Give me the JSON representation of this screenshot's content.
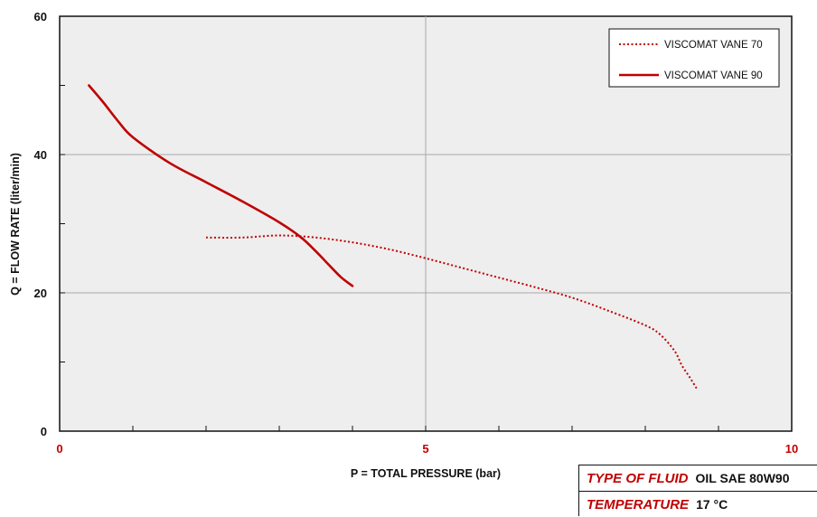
{
  "chart_data": {
    "type": "line",
    "xlabel": "P = TOTAL PRESSURE (bar)",
    "ylabel": "Q = FLOW RATE (liter/min)",
    "xlim": [
      0,
      10
    ],
    "ylim": [
      0,
      60
    ],
    "x_ticks": [
      0,
      5,
      10
    ],
    "y_ticks": [
      0,
      20,
      40,
      60
    ],
    "grid": true,
    "legend_position": "top-right",
    "series": [
      {
        "name": "VISCOMAT VANE 70",
        "style": "dotted",
        "color": "#c00000",
        "x": [
          2.0,
          2.5,
          3.0,
          3.5,
          4.0,
          4.5,
          5.0,
          5.5,
          6.0,
          6.5,
          7.0,
          7.5,
          8.0,
          8.2,
          8.4,
          8.5,
          8.6,
          8.7
        ],
        "y": [
          28,
          28,
          28.3,
          28,
          27.3,
          26.3,
          25,
          23.6,
          22.2,
          20.8,
          19.3,
          17.4,
          15.3,
          14,
          11.6,
          9.5,
          7.9,
          6.2
        ]
      },
      {
        "name": "VISCOMAT VANE 90",
        "style": "solid",
        "color": "#c00000",
        "x": [
          0.4,
          0.6,
          0.8,
          1.0,
          1.5,
          2.0,
          2.5,
          3.0,
          3.3,
          3.5,
          3.7,
          3.85,
          4.0
        ],
        "y": [
          50,
          47.5,
          44.8,
          42.5,
          38.8,
          36,
          33.2,
          30.2,
          28,
          26,
          23.8,
          22.2,
          21
        ]
      }
    ]
  },
  "info_table": {
    "fluid_label": "TYPE OF FLUID",
    "fluid_value": "OIL SAE 80W90",
    "temperature_label": "TEMPERATURE",
    "temperature_value": "17 °C"
  }
}
